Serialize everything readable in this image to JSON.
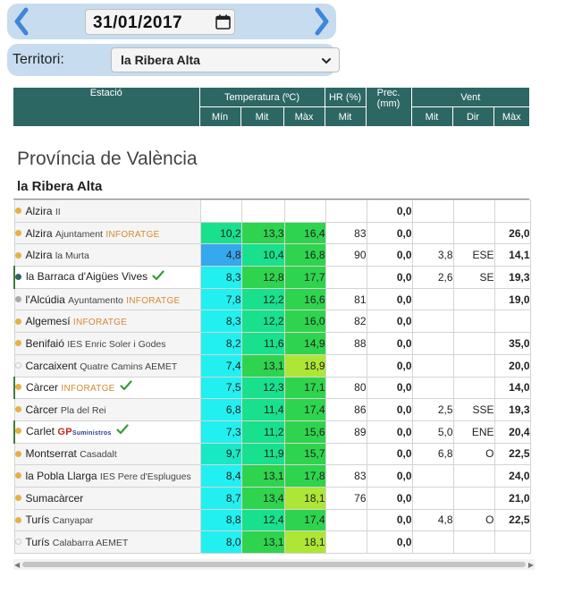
{
  "date": {
    "value": "31/01/2017"
  },
  "territori": {
    "label": "Territori:",
    "value": "la Ribera Alta"
  },
  "header": {
    "estacio": "Estació",
    "temperatura": "Temperatura (ºC)",
    "hr": "HR (%)",
    "prec": "Prec.",
    "prec_unit": "(mm)",
    "vent": "Vent",
    "min": "Mín",
    "mit": "Mit",
    "max": "Màx",
    "hr_mit": "Mit",
    "vent_mit": "Mit",
    "vent_dir": "Dir",
    "vent_max": "Màx"
  },
  "region": "Província de València",
  "subregion": "la Ribera Alta",
  "colors": {
    "header_bg": "#2d6763",
    "topbar_bg": "#c7dcef",
    "dot_station": "#e3b246",
    "dot_own": "#2d6763",
    "dot_inactive": "#aaaaaa"
  },
  "rows": [
    {
      "name": "Alzira",
      "sub": "II",
      "brand": "",
      "dot": "#e3b246",
      "dot_style": "filled",
      "check": false,
      "own": false,
      "tmin": "",
      "tmit": "",
      "tmax": "",
      "hr": "",
      "prec": "0,0",
      "vmit": "",
      "vdir": "",
      "vmax": "",
      "cmin": "",
      "cmit": "",
      "cmax": ""
    },
    {
      "name": "Alzira",
      "sub": "Ajuntament",
      "brand": "INFORATGE",
      "dot": "#e3b246",
      "dot_style": "filled",
      "check": false,
      "own": false,
      "tmin": "10,2",
      "tmit": "13,3",
      "tmax": "16,4",
      "hr": "83",
      "prec": "0,0",
      "vmit": "",
      "vdir": "",
      "vmax": "26,0",
      "cmin": "#19e08c",
      "cmit": "#2fd44e",
      "cmax": "#2fd44e"
    },
    {
      "name": "Alzira",
      "sub": "la Murta",
      "brand": "",
      "dot": "#e3b246",
      "dot_style": "filled",
      "check": false,
      "own": false,
      "tmin": "4,8",
      "tmit": "10,4",
      "tmax": "16,8",
      "hr": "90",
      "prec": "0,0",
      "vmit": "3,8",
      "vdir": "ESE",
      "vmax": "14,1",
      "cmin": "#36a8ee",
      "cmit": "#19e08c",
      "cmax": "#2fd44e"
    },
    {
      "name": "la Barraca d'Aigües Vives",
      "sub": "",
      "brand": "",
      "dot": "#2d6763",
      "dot_style": "filled",
      "check": true,
      "own": true,
      "tmin": "8,3",
      "tmit": "12,8",
      "tmax": "17,7",
      "hr": "",
      "prec": "0,0",
      "vmit": "2,6",
      "vdir": "SE",
      "vmax": "19,3",
      "cmin": "#22f0f0",
      "cmit": "#2fd44e",
      "cmax": "#2fd44e"
    },
    {
      "name": "l'Alcúdia",
      "sub": "Ayuntamento",
      "brand": "INFORATGE",
      "dot": "#aaaaaa",
      "dot_style": "filled",
      "check": false,
      "own": false,
      "tmin": "7,8",
      "tmit": "12,2",
      "tmax": "16,6",
      "hr": "81",
      "prec": "0,0",
      "vmit": "",
      "vdir": "",
      "vmax": "19,0",
      "cmin": "#22f0f0",
      "cmit": "#19e08c",
      "cmax": "#2fd44e"
    },
    {
      "name": "Algemesí",
      "sub": "",
      "brand": "INFORATGE",
      "dot": "#e3b246",
      "dot_style": "filled",
      "check": false,
      "own": false,
      "tmin": "8,3",
      "tmit": "12,2",
      "tmax": "16,0",
      "hr": "82",
      "prec": "0,0",
      "vmit": "",
      "vdir": "",
      "vmax": "",
      "cmin": "#22f0f0",
      "cmit": "#19e08c",
      "cmax": "#2fd44e"
    },
    {
      "name": "Benifaió",
      "sub": "IES Enric Soler i Godes",
      "brand": "",
      "dot": "#e3b246",
      "dot_style": "filled",
      "check": false,
      "own": false,
      "tmin": "8,2",
      "tmit": "11,6",
      "tmax": "14,9",
      "hr": "88",
      "prec": "0,0",
      "vmit": "",
      "vdir": "",
      "vmax": "35,0",
      "cmin": "#22f0f0",
      "cmit": "#19e08c",
      "cmax": "#2fd44e"
    },
    {
      "name": "Carcaixent",
      "sub": "Quatre Camins AEMET",
      "brand": "",
      "dot": "#cccccc",
      "dot_style": "hollow",
      "check": false,
      "own": false,
      "tmin": "7,4",
      "tmit": "13,1",
      "tmax": "18,9",
      "hr": "",
      "prec": "0,0",
      "vmit": "",
      "vdir": "",
      "vmax": "20,0",
      "cmin": "#22f0f0",
      "cmit": "#2fd44e",
      "cmax": "#aee635"
    },
    {
      "name": "Càrcer",
      "sub": "",
      "brand": "INFORATGE",
      "dot": "#e3b246",
      "dot_style": "filled",
      "check": true,
      "own": true,
      "tmin": "7,5",
      "tmit": "12,3",
      "tmax": "17,1",
      "hr": "80",
      "prec": "0,0",
      "vmit": "",
      "vdir": "",
      "vmax": "14,0",
      "cmin": "#22f0f0",
      "cmit": "#19e08c",
      "cmax": "#2fd44e"
    },
    {
      "name": "Càrcer",
      "sub": "Pla del Rei",
      "brand": "",
      "dot": "#e3b246",
      "dot_style": "filled",
      "check": false,
      "own": false,
      "tmin": "6,8",
      "tmit": "11,4",
      "tmax": "17,4",
      "hr": "86",
      "prec": "0,0",
      "vmit": "2,5",
      "vdir": "SSE",
      "vmax": "19,3",
      "cmin": "#22f0f0",
      "cmit": "#19e08c",
      "cmax": "#2fd44e"
    },
    {
      "name": "Carlet",
      "sub": "",
      "brand": "GP",
      "brand_small": "Suministros",
      "dot": "#e3b246",
      "dot_style": "filled",
      "check": true,
      "own": true,
      "tmin": "7,3",
      "tmit": "11,2",
      "tmax": "15,6",
      "hr": "89",
      "prec": "0,0",
      "vmit": "5,0",
      "vdir": "ENE",
      "vmax": "20,4",
      "cmin": "#22f0f0",
      "cmit": "#19e08c",
      "cmax": "#2fd44e"
    },
    {
      "name": "Montserrat",
      "sub": "Casadalt",
      "brand": "",
      "dot": "#e3b246",
      "dot_style": "filled",
      "check": false,
      "own": false,
      "tmin": "9,7",
      "tmit": "11,9",
      "tmax": "15,7",
      "hr": "",
      "prec": "0,0",
      "vmit": "6,8",
      "vdir": "O",
      "vmax": "22,5",
      "cmin": "#19e8c4",
      "cmit": "#19e08c",
      "cmax": "#2fd44e"
    },
    {
      "name": "la Pobla Llarga",
      "sub": "IES Pere d'Esplugues",
      "brand": "",
      "dot": "#e3b246",
      "dot_style": "filled",
      "check": false,
      "own": false,
      "tmin": "8,4",
      "tmit": "13,1",
      "tmax": "17,8",
      "hr": "83",
      "prec": "0,0",
      "vmit": "",
      "vdir": "",
      "vmax": "24,0",
      "cmin": "#22f0f0",
      "cmit": "#2fd44e",
      "cmax": "#2fd44e"
    },
    {
      "name": "Sumacàrcer",
      "sub": "",
      "brand": "",
      "dot": "#e3b246",
      "dot_style": "filled",
      "check": false,
      "own": false,
      "tmin": "8,7",
      "tmit": "13,4",
      "tmax": "18,1",
      "hr": "76",
      "prec": "0,0",
      "vmit": "",
      "vdir": "",
      "vmax": "21,0",
      "cmin": "#22f0f0",
      "cmit": "#2fd44e",
      "cmax": "#aee635"
    },
    {
      "name": "Turís",
      "sub": "Canyapar",
      "brand": "",
      "dot": "#e3b246",
      "dot_style": "filled",
      "check": false,
      "own": false,
      "tmin": "8,8",
      "tmit": "12,4",
      "tmax": "17,4",
      "hr": "",
      "prec": "0,0",
      "vmit": "4,8",
      "vdir": "O",
      "vmax": "22,5",
      "cmin": "#22f0f0",
      "cmit": "#19e08c",
      "cmax": "#2fd44e"
    },
    {
      "name": "Turís",
      "sub": "Calabarra AEMET",
      "brand": "",
      "dot": "#cccccc",
      "dot_style": "hollow",
      "check": false,
      "own": false,
      "tmin": "8,0",
      "tmit": "13,1",
      "tmax": "18,1",
      "hr": "",
      "prec": "0,0",
      "vmit": "",
      "vdir": "",
      "vmax": "",
      "cmin": "#22f0f0",
      "cmit": "#2fd44e",
      "cmax": "#aee635"
    }
  ]
}
